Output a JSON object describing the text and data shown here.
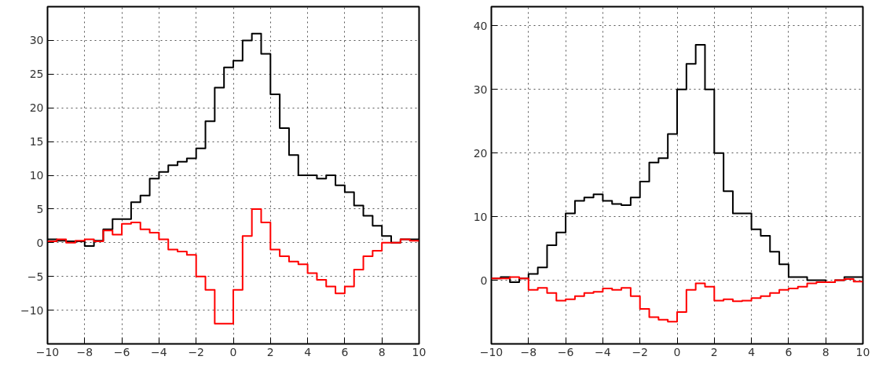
{
  "chart_data": [
    {
      "type": "histogram",
      "bins": [
        -10,
        -9.5,
        -9,
        -8.5,
        -8,
        -7.5,
        -7,
        -6.5,
        -6,
        -5.5,
        -5,
        -4.5,
        -4,
        -3.5,
        -3,
        -2.5,
        -2,
        -1.5,
        -1,
        -0.5,
        0,
        0.5,
        1,
        1.5,
        2,
        2.5,
        3,
        3.5,
        4,
        4.5,
        5,
        5.5,
        6,
        6.5,
        7,
        7.5,
        8,
        8.5,
        9,
        9.5,
        10
      ],
      "series": [
        {
          "color": "#000000",
          "values": [
            0.5,
            0.3,
            0.2,
            0.2,
            -0.5,
            0.3,
            2,
            3.5,
            3.5,
            6,
            7,
            9.5,
            10.5,
            11.5,
            12,
            12.5,
            14,
            18,
            23,
            26,
            27,
            30,
            31,
            28,
            22,
            17,
            13,
            10,
            10,
            9.5,
            10,
            8.5,
            7.5,
            5.5,
            4,
            2.5,
            1,
            0,
            0.5,
            0.5
          ]
        },
        {
          "color": "#ff0000",
          "values": [
            0.2,
            0.5,
            0,
            0.3,
            0.5,
            0.2,
            1.8,
            1.2,
            2.8,
            3,
            2,
            1.5,
            0.5,
            -1,
            -1.3,
            -1.8,
            -5,
            -7,
            -12,
            -12,
            -7,
            1,
            5,
            3,
            -1,
            -2,
            -2.8,
            -3.2,
            -4.5,
            -5.5,
            -6.5,
            -7.5,
            -6.5,
            -4,
            -2,
            -1.2,
            0,
            0,
            0.5,
            0.3
          ]
        }
      ],
      "xlim": [
        -10,
        10
      ],
      "ylim": [
        -15,
        35
      ],
      "xticks": [
        -10,
        -8,
        -6,
        -4,
        -2,
        0,
        2,
        4,
        6,
        8,
        10
      ],
      "yticks": [
        -10,
        -5,
        0,
        5,
        10,
        15,
        20,
        25,
        30
      ],
      "grid": true,
      "line_style": "solid"
    },
    {
      "type": "histogram",
      "bins": [
        -10,
        -9.5,
        -9,
        -8.5,
        -8,
        -7.5,
        -7,
        -6.5,
        -6,
        -5.5,
        -5,
        -4.5,
        -4,
        -3.5,
        -3,
        -2.5,
        -2,
        -1.5,
        -1,
        -0.5,
        0,
        0.5,
        1,
        1.5,
        2,
        2.5,
        3,
        3.5,
        4,
        4.5,
        5,
        5.5,
        6,
        6.5,
        7,
        7.5,
        8,
        8.5,
        9,
        9.5,
        10
      ],
      "series": [
        {
          "color": "#000000",
          "values": [
            0.3,
            0.5,
            -0.3,
            0.3,
            1,
            2,
            5.5,
            7.5,
            10.5,
            12.5,
            13,
            13.5,
            12.5,
            12,
            11.8,
            13,
            15.5,
            18.5,
            19.2,
            23,
            30,
            34,
            37,
            30,
            20,
            14,
            10.5,
            10.5,
            8,
            7,
            4.5,
            2.5,
            0.5,
            0.5,
            0,
            0,
            -0.3,
            0,
            0.5,
            0.5
          ]
        },
        {
          "color": "#ff0000",
          "values": [
            0.3,
            0.3,
            0.5,
            0.3,
            -1.5,
            -1.2,
            -2,
            -3.2,
            -3,
            -2.5,
            -2,
            -1.8,
            -1.3,
            -1.5,
            -1.2,
            -2.5,
            -4.5,
            -5.8,
            -6.2,
            -6.5,
            -5,
            -1.5,
            -0.5,
            -1,
            -3.2,
            -3,
            -3.3,
            -3.2,
            -2.8,
            -2.5,
            -2,
            -1.5,
            -1.3,
            -1,
            -0.5,
            -0.3,
            -0.3,
            0,
            0.2,
            -0.2
          ]
        }
      ],
      "xlim": [
        -10,
        10
      ],
      "ylim": [
        -10,
        43
      ],
      "xticks": [
        -10,
        -8,
        -6,
        -4,
        -2,
        0,
        2,
        4,
        6,
        8,
        10
      ],
      "yticks": [
        0,
        10,
        20,
        30,
        40
      ],
      "grid": true,
      "line_style": "solid"
    }
  ]
}
